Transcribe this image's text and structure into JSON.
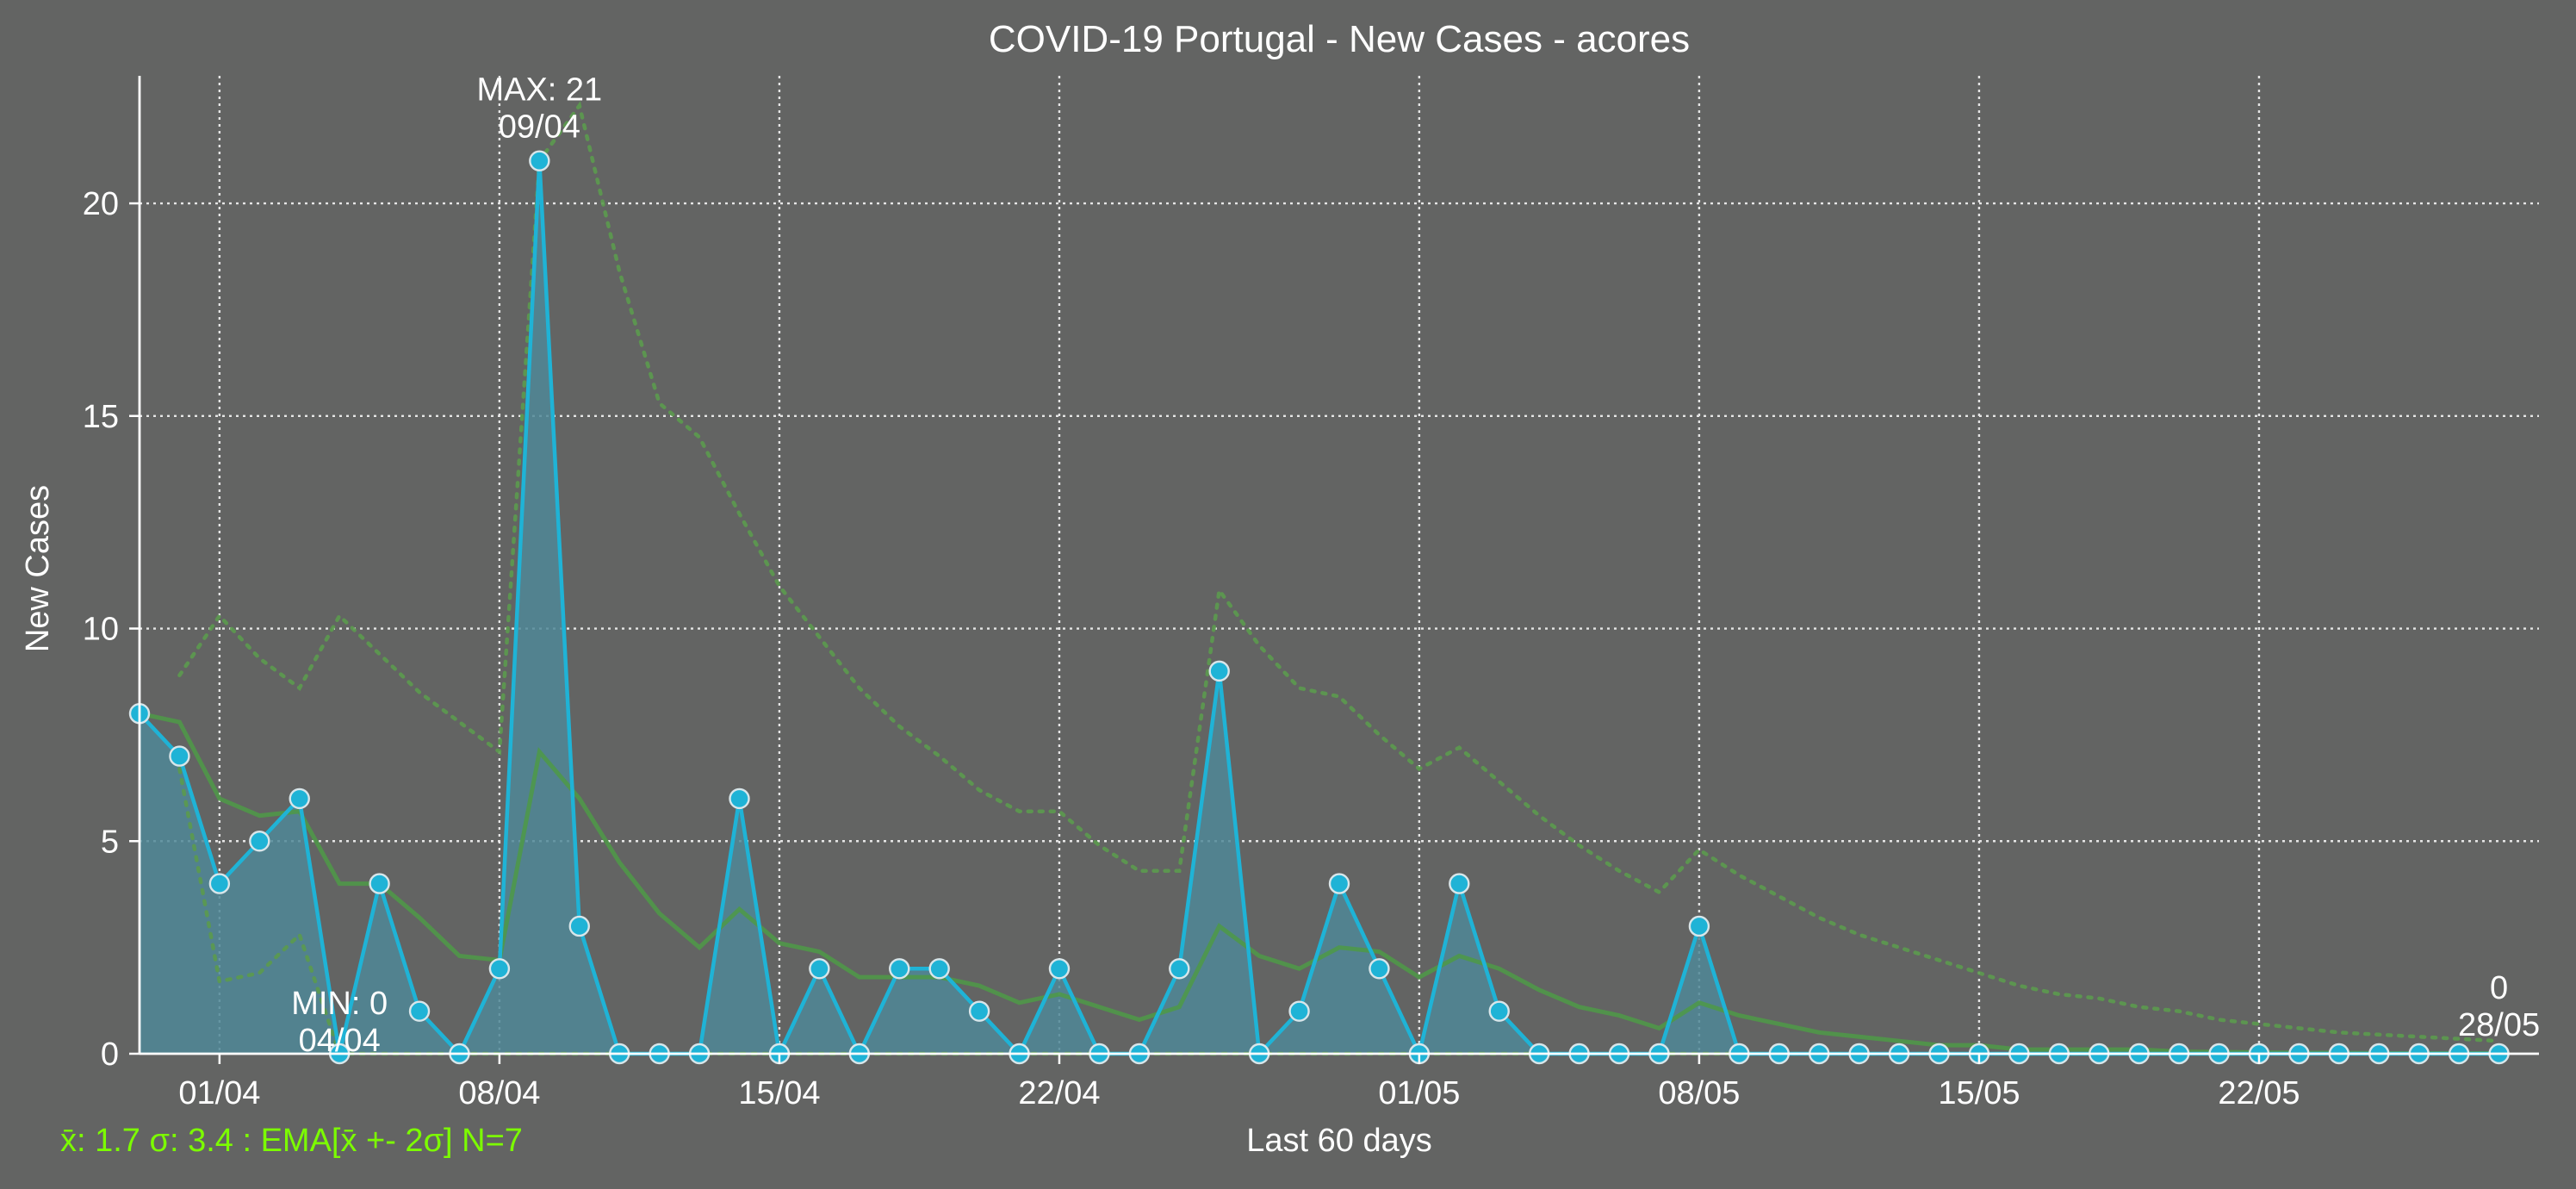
{
  "colors": {
    "background": "#636463",
    "series_line": "#1FB3D6",
    "series_fill": "#4F8797",
    "marker_edge": "#D8E6EA",
    "ema": "#4E9A46",
    "bands": "#5B9A4E",
    "text": "#FFFFFF",
    "stats_text": "#7CFC00",
    "grid": "#E6E6E6"
  },
  "chart_data": {
    "type": "area",
    "title": "COVID-19 Portugal - New Cases - acores",
    "xlabel": "Last 60 days",
    "ylabel": "New Cases",
    "y_ticks": [
      0,
      5,
      10,
      15,
      20
    ],
    "y_tick_labels": [
      "0",
      "5",
      "10",
      "15",
      "20"
    ],
    "ylim": [
      0,
      23
    ],
    "x_ticks": [
      "2020-04-01",
      "2020-04-08",
      "2020-04-15",
      "2020-04-22",
      "2020-05-01",
      "2020-05-08",
      "2020-05-15",
      "2020-05-22"
    ],
    "x_tick_labels": [
      "01/04",
      "08/04",
      "15/04",
      "22/04",
      "01/05",
      "08/05",
      "15/05",
      "22/05"
    ],
    "xlim": [
      "2020-03-30",
      "2020-05-29"
    ],
    "grid": true,
    "x": [
      "2020-03-30",
      "2020-03-31",
      "2020-04-01",
      "2020-04-02",
      "2020-04-03",
      "2020-04-04",
      "2020-04-05",
      "2020-04-06",
      "2020-04-07",
      "2020-04-08",
      "2020-04-09",
      "2020-04-10",
      "2020-04-11",
      "2020-04-12",
      "2020-04-13",
      "2020-04-14",
      "2020-04-15",
      "2020-04-16",
      "2020-04-17",
      "2020-04-18",
      "2020-04-19",
      "2020-04-20",
      "2020-04-21",
      "2020-04-22",
      "2020-04-23",
      "2020-04-24",
      "2020-04-25",
      "2020-04-26",
      "2020-04-27",
      "2020-04-28",
      "2020-04-29",
      "2020-04-30",
      "2020-05-01",
      "2020-05-02",
      "2020-05-03",
      "2020-05-04",
      "2020-05-05",
      "2020-05-06",
      "2020-05-07",
      "2020-05-08",
      "2020-05-09",
      "2020-05-10",
      "2020-05-11",
      "2020-05-12",
      "2020-05-13",
      "2020-05-14",
      "2020-05-15",
      "2020-05-16",
      "2020-05-17",
      "2020-05-18",
      "2020-05-19",
      "2020-05-20",
      "2020-05-21",
      "2020-05-22",
      "2020-05-23",
      "2020-05-24",
      "2020-05-25",
      "2020-05-26",
      "2020-05-27",
      "2020-05-28"
    ],
    "series": [
      {
        "values": [
          8,
          7,
          4,
          5,
          6,
          0,
          4,
          1,
          0,
          2,
          21,
          3,
          0,
          0,
          0,
          6,
          0,
          2,
          0,
          2,
          2,
          1,
          0,
          2,
          0,
          0,
          2,
          9,
          0,
          1,
          4,
          2,
          0,
          4,
          1,
          0,
          0,
          0,
          0,
          3,
          0,
          0,
          0,
          0,
          0,
          0,
          0,
          0,
          0,
          0,
          0,
          0,
          0,
          0,
          0,
          0,
          0,
          0,
          0,
          0
        ]
      },
      {
        "values": [
          8.0,
          7.8,
          6.0,
          5.6,
          5.7,
          4.0,
          4.0,
          3.2,
          2.3,
          2.2,
          7.1,
          6.0,
          4.5,
          3.3,
          2.5,
          3.4,
          2.6,
          2.4,
          1.8,
          1.8,
          1.8,
          1.6,
          1.2,
          1.4,
          1.1,
          0.8,
          1.1,
          3.0,
          2.3,
          2.0,
          2.5,
          2.4,
          1.8,
          2.3,
          2.0,
          1.5,
          1.1,
          0.9,
          0.6,
          1.2,
          0.9,
          0.7,
          0.5,
          0.4,
          0.3,
          0.2,
          0.2,
          0.1,
          0.1,
          0.1,
          0.1,
          0.05,
          0.04,
          0.03,
          0.02,
          0.02,
          0.01,
          0.01,
          0.01,
          0.01
        ]
      },
      {
        "values": [
          null,
          8.9,
          10.3,
          9.3,
          8.6,
          10.3,
          9.4,
          8.5,
          7.8,
          7.1,
          21.0,
          22.3,
          18.4,
          15.3,
          14.5,
          12.7,
          11.0,
          9.8,
          8.6,
          7.7,
          7.0,
          6.2,
          5.7,
          5.7,
          4.9,
          4.3,
          4.3,
          10.9,
          9.6,
          8.6,
          8.4,
          7.5,
          6.7,
          7.2,
          6.4,
          5.6,
          4.9,
          4.3,
          3.8,
          4.8,
          4.2,
          3.7,
          3.2,
          2.8,
          2.5,
          2.2,
          1.9,
          1.6,
          1.4,
          1.3,
          1.1,
          1.0,
          0.8,
          0.7,
          0.6,
          0.5,
          0.45,
          0.4,
          0.35,
          0.3
        ]
      },
      {
        "values": [
          null,
          6.7,
          1.7,
          1.9,
          2.8,
          0.0,
          0.0,
          0.0,
          0.0,
          0.0,
          0.0,
          0.0,
          0.0,
          0.0,
          0.0,
          0.0,
          0.0,
          0.0,
          0.0,
          0.0,
          0.0,
          0.0,
          0.0,
          0.0,
          0.0,
          0.0,
          0.0,
          0.0,
          0.0,
          0.0,
          0.0,
          0.0,
          0.0,
          0.0,
          0.0,
          0.0,
          0.0,
          0.0,
          0.0,
          0.0,
          0.0,
          0.0,
          0.0,
          0.0,
          0.0,
          0.0,
          0.0,
          0.0,
          0.0,
          0.0,
          0.0,
          0.0,
          0.0,
          0.0,
          0.0,
          0.0,
          0.0,
          0.0,
          0.0,
          0.0
        ]
      }
    ],
    "annotations": {
      "max": {
        "label": "MAX: 21",
        "date": "09/04",
        "x": "2020-04-09",
        "y": 21
      },
      "min": {
        "label": "MIN: 0",
        "date": "04/04",
        "x": "2020-04-04",
        "y": 0
      },
      "last": {
        "label": "0",
        "date": "28/05",
        "x": "2020-05-28",
        "y": 0
      }
    },
    "stats_text": "x̄: 1.7 σ: 3.4 : EMA[x̄ +- 2σ] N=7"
  }
}
